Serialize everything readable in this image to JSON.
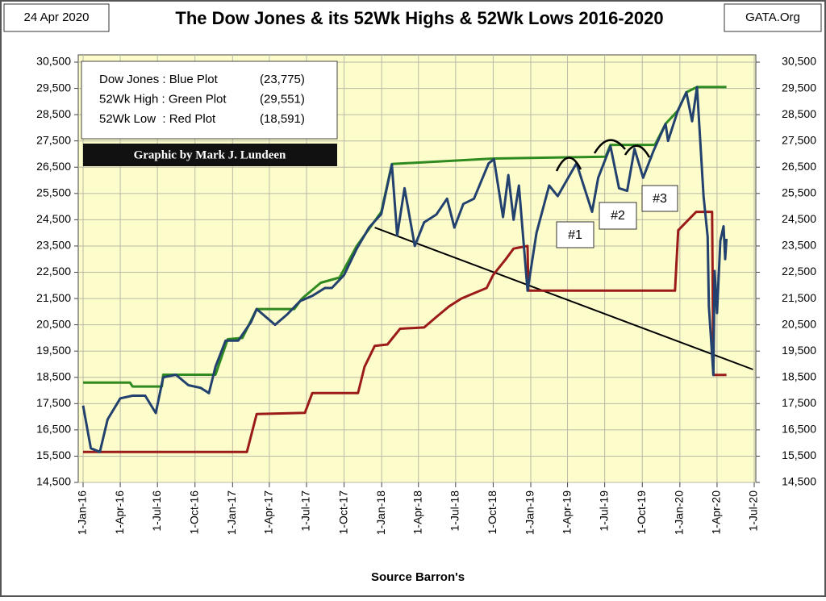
{
  "chart_data": {
    "type": "line",
    "title": "The Dow Jones & its 52Wk Highs & 52Wk Lows 2016-2020",
    "date_label": "24 Apr 2020",
    "source_label": "GATA.Org",
    "credit": "Graphic by Mark J. Lundeen",
    "xlabel": "Source Barron's",
    "annotations": [
      "#1",
      "#2",
      "#3"
    ],
    "grid": true,
    "xlim": [
      "2016-01-01",
      "2020-07-01"
    ],
    "xticks": [
      {
        "value": "2016-01-01",
        "label": "1-Jan-16"
      },
      {
        "value": "2016-04-01",
        "label": "1-Apr-16"
      },
      {
        "value": "2016-07-01",
        "label": "1-Jul-16"
      },
      {
        "value": "2016-10-01",
        "label": "1-Oct-16"
      },
      {
        "value": "2017-01-01",
        "label": "1-Jan-17"
      },
      {
        "value": "2017-04-01",
        "label": "1-Apr-17"
      },
      {
        "value": "2017-07-01",
        "label": "1-Jul-17"
      },
      {
        "value": "2017-10-01",
        "label": "1-Oct-17"
      },
      {
        "value": "2018-01-01",
        "label": "1-Jan-18"
      },
      {
        "value": "2018-04-01",
        "label": "1-Apr-18"
      },
      {
        "value": "2018-07-01",
        "label": "1-Jul-18"
      },
      {
        "value": "2018-10-01",
        "label": "1-Oct-18"
      },
      {
        "value": "2019-01-01",
        "label": "1-Jan-19"
      },
      {
        "value": "2019-04-01",
        "label": "1-Apr-19"
      },
      {
        "value": "2019-07-01",
        "label": "1-Jul-19"
      },
      {
        "value": "2019-10-01",
        "label": "1-Oct-19"
      },
      {
        "value": "2020-01-01",
        "label": "1-Jan-20"
      },
      {
        "value": "2020-04-01",
        "label": "1-Apr-20"
      },
      {
        "value": "2020-07-01",
        "label": "1-Jul-20"
      }
    ],
    "ylim": [
      14500,
      30500
    ],
    "yticks": [
      {
        "value": 14500,
        "label": "14,500"
      },
      {
        "value": 15500,
        "label": "15,500"
      },
      {
        "value": 16500,
        "label": "16,500"
      },
      {
        "value": 17500,
        "label": "17,500"
      },
      {
        "value": 18500,
        "label": "18,500"
      },
      {
        "value": 19500,
        "label": "19,500"
      },
      {
        "value": 20500,
        "label": "20,500"
      },
      {
        "value": 21500,
        "label": "21,500"
      },
      {
        "value": 22500,
        "label": "22,500"
      },
      {
        "value": 23500,
        "label": "23,500"
      },
      {
        "value": 24500,
        "label": "24,500"
      },
      {
        "value": 25500,
        "label": "25,500"
      },
      {
        "value": 26500,
        "label": "26,500"
      },
      {
        "value": 27500,
        "label": "27,500"
      },
      {
        "value": 28500,
        "label": "28,500"
      },
      {
        "value": 29500,
        "label": "29,500"
      },
      {
        "value": 30500,
        "label": "30,500"
      }
    ],
    "series": [
      {
        "name": "Dow Jones : Blue Plot",
        "legend_note": "(23,775)",
        "color": "#22416e",
        "x": [
          "2016-01-01",
          "2016-01-20",
          "2016-02-11",
          "2016-03-01",
          "2016-04-01",
          "2016-05-01",
          "2016-06-01",
          "2016-06-27",
          "2016-07-15",
          "2016-08-15",
          "2016-09-15",
          "2016-10-15",
          "2016-11-04",
          "2016-11-20",
          "2016-12-15",
          "2017-01-15",
          "2017-02-15",
          "2017-03-01",
          "2017-04-15",
          "2017-05-15",
          "2017-06-15",
          "2017-07-15",
          "2017-08-15",
          "2017-09-01",
          "2017-10-01",
          "2017-11-01",
          "2017-12-01",
          "2017-12-31",
          "2018-01-26",
          "2018-02-08",
          "2018-02-26",
          "2018-03-23",
          "2018-04-15",
          "2018-05-15",
          "2018-06-10",
          "2018-06-28",
          "2018-07-20",
          "2018-08-15",
          "2018-09-20",
          "2018-10-03",
          "2018-10-25",
          "2018-11-07",
          "2018-11-20",
          "2018-12-03",
          "2018-12-24",
          "2019-01-15",
          "2019-02-15",
          "2019-03-08",
          "2019-04-23",
          "2019-05-31",
          "2019-06-15",
          "2019-07-15",
          "2019-08-05",
          "2019-08-25",
          "2019-09-12",
          "2019-10-03",
          "2019-10-28",
          "2019-11-27",
          "2019-12-03",
          "2019-12-27",
          "2020-01-17",
          "2020-01-31",
          "2020-02-12",
          "2020-02-28",
          "2020-03-09",
          "2020-03-12",
          "2020-03-23",
          "2020-03-26",
          "2020-04-01",
          "2020-04-09",
          "2020-04-17",
          "2020-04-21",
          "2020-04-24"
        ],
        "values": [
          17425,
          15800,
          15660,
          16900,
          17700,
          17800,
          17800,
          17140,
          18500,
          18600,
          18200,
          18100,
          17900,
          18900,
          19900,
          19900,
          20600,
          21100,
          20500,
          20900,
          21400,
          21600,
          21900,
          21900,
          22400,
          23400,
          24200,
          24720,
          26600,
          23900,
          25700,
          23500,
          24400,
          24700,
          25300,
          24200,
          25100,
          25300,
          26650,
          26800,
          24600,
          26200,
          24500,
          25800,
          21800,
          24000,
          25800,
          25400,
          26650,
          24800,
          26100,
          27300,
          25700,
          25600,
          27200,
          26100,
          27100,
          28150,
          27500,
          28650,
          29350,
          28250,
          29550,
          25400,
          23850,
          21200,
          18591,
          22550,
          20950,
          23700,
          24250,
          23000,
          23775
        ]
      },
      {
        "name": "52Wk High : Green Plot",
        "legend_note": "(29,551)",
        "color": "#2f8a1f",
        "x": [
          "2016-01-01",
          "2016-04-25",
          "2016-05-01",
          "2016-07-12",
          "2016-07-15",
          "2016-11-20",
          "2016-12-20",
          "2017-01-25",
          "2017-03-01",
          "2017-06-01",
          "2017-06-20",
          "2017-08-05",
          "2017-09-20",
          "2017-11-01",
          "2017-12-31",
          "2018-01-26",
          "2018-10-03",
          "2019-07-03",
          "2019-07-15",
          "2019-11-01",
          "2019-11-27",
          "2019-12-27",
          "2020-01-17",
          "2020-02-12",
          "2020-04-24"
        ],
        "values": [
          18300,
          18300,
          18150,
          18150,
          18600,
          18600,
          19950,
          20000,
          21100,
          21100,
          21500,
          22100,
          22300,
          23500,
          24800,
          26620,
          26830,
          26900,
          27350,
          27350,
          28150,
          28650,
          29350,
          29551,
          29551
        ]
      },
      {
        "name": "52Wk Low  : Red Plot",
        "legend_note": "(18,591)",
        "color": "#9b1b1b",
        "x": [
          "2016-01-01",
          "2017-02-05",
          "2017-03-01",
          "2017-06-27",
          "2017-07-15",
          "2017-11-04",
          "2017-11-20",
          "2017-12-15",
          "2018-01-15",
          "2018-02-15",
          "2018-04-15",
          "2018-05-15",
          "2018-06-15",
          "2018-07-15",
          "2018-08-15",
          "2018-09-15",
          "2018-10-01",
          "2018-11-01",
          "2018-11-20",
          "2018-12-24",
          "2018-12-26",
          "2019-12-20",
          "2019-12-28",
          "2020-02-10",
          "2020-03-20",
          "2020-03-23",
          "2020-04-24"
        ],
        "values": [
          15660,
          15660,
          17100,
          17150,
          17900,
          17900,
          18900,
          19700,
          19750,
          20350,
          20400,
          20800,
          21200,
          21500,
          21700,
          21900,
          22400,
          23000,
          23400,
          23500,
          21800,
          21800,
          24100,
          24800,
          24800,
          18591,
          18591
        ]
      }
    ],
    "trend_line": {
      "color": "#000000",
      "x": [
        "2017-12-15",
        "2020-06-28"
      ],
      "values": [
        24200,
        18800
      ]
    }
  }
}
